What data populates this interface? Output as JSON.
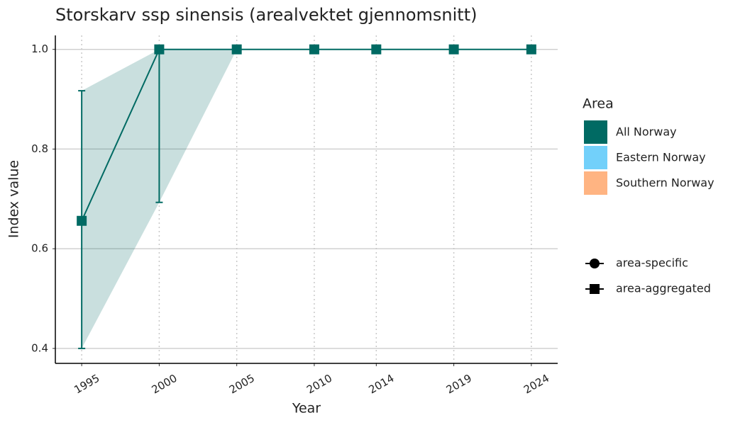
{
  "chart_data": {
    "type": "line",
    "title": "Storskarv ssp sinensis (arealvektet gjennomsnitt)",
    "x_label": "Year",
    "y_label": "Index value",
    "x": [
      1995,
      2000,
      2005,
      2010,
      2014,
      2019,
      2024
    ],
    "series": [
      {
        "color": "#006a63",
        "shape": "square",
        "values": [
          0.656,
          1.0,
          1.0,
          1.0,
          1.0,
          1.0,
          1.0
        ],
        "lower": [
          0.4,
          0.693,
          1.0,
          1.0,
          1.0,
          1.0,
          1.0
        ],
        "upper": [
          0.917,
          1.0,
          1.0,
          1.0,
          1.0,
          1.0,
          1.0
        ]
      }
    ],
    "xlim": [
      1993.3,
      2025.7
    ],
    "ylim": [
      0.37,
      1.028
    ],
    "xticks": [
      1995,
      2000,
      2005,
      2010,
      2014,
      2019,
      2024
    ],
    "yticks": [
      {
        "value": 0.4,
        "label": "0.4"
      },
      {
        "value": 0.6,
        "label": "0.6"
      },
      {
        "value": 0.8,
        "label": "0.8"
      },
      {
        "value": 1.0,
        "label": "1.0"
      }
    ],
    "grid": true,
    "legend": {
      "title": "Area",
      "items": [
        {
          "name": "All Norway",
          "color": "#006a63"
        },
        {
          "name": "Eastern Norway",
          "color": "#72d0fa"
        },
        {
          "name": "Southern Norway",
          "color": "#ffb482"
        }
      ]
    },
    "shape_legend": {
      "items": [
        {
          "name": "area-specific",
          "shape": "circle"
        },
        {
          "name": "area-aggregated",
          "shape": "square"
        }
      ]
    }
  }
}
